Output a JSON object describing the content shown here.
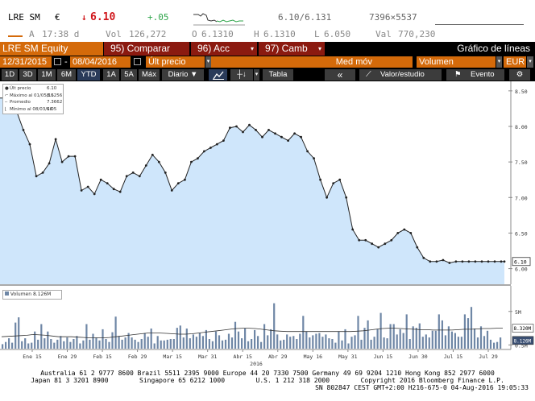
{
  "quote": {
    "ticker": "LRE SM",
    "currency": "€",
    "arrow": "↓",
    "price": "6.10",
    "change": "+.05",
    "bid_ask": "6.10/6.131",
    "size": "7396×5537",
    "prefix": "A",
    "time": "17:38 d",
    "vol_label": "Vol",
    "vol": "126,272",
    "open_label": "O",
    "open": "6.1310",
    "high_label": "H",
    "high": "6.1310",
    "low_label": "L",
    "low": "6.050",
    "val_label": "Val",
    "val": "770,230"
  },
  "menu": {
    "security": "LRE SM Equity",
    "compare": "95) Comparar",
    "actions": "96) Acc",
    "change": "97) Camb",
    "title": "Gráfico de líneas"
  },
  "params": {
    "date_from": "12/31/2015",
    "date_to": "08/04/2016",
    "field": "Últ precio",
    "moving_avg": "Med móv",
    "volume": "Volumen",
    "currency": "EUR"
  },
  "toolbar": {
    "ranges": [
      "1D",
      "3D",
      "1M",
      "6M",
      "YTD",
      "1A",
      "5A",
      "Máx"
    ],
    "active_range": "YTD",
    "period": "Diario ▼",
    "table": "Tabla",
    "value_study": "Valor/estudio",
    "event": "Evento"
  },
  "legend": {
    "rows": [
      {
        "label": "Últ precio",
        "value": "6.10"
      },
      {
        "label": "Máximo al 01/05/16",
        "value": "8.5256"
      },
      {
        "label": "Promedio",
        "value": "7.3662"
      },
      {
        "label": "Mínimo al 08/03/16",
        "value": "6.05"
      }
    ]
  },
  "volume_legend": {
    "label": "Volumen",
    "value": "8.126M"
  },
  "footer": {
    "line1": "Australia 61 2 9777 8600 Brazil 5511 2395 9000 Europe 44 20 7330 7500 Germany 49 69 9204 1210 Hong Kong 852 2977 6000",
    "line2": "Japan 81 3 3201 8900        Singapore 65 6212 1000        U.S. 1 212 318 2000        Copyright 2016 Bloomberg Finance L.P.",
    "line3": "SN 802847 CEST GMT+2:00 H216-675-0 04-Aug-2016 19:05:33"
  },
  "colors": {
    "orange": "#d46a0a",
    "line": "#222222",
    "area": "#cfe6fb",
    "volume_bar": "#6f87a6",
    "green": "#2fa54a",
    "red": "#d0161b"
  },
  "chart_data": [
    {
      "type": "area",
      "title": "",
      "series": [
        {
          "name": "Últ precio",
          "x": [
            0,
            2,
            4,
            6,
            8,
            10,
            12,
            14,
            16,
            18,
            20,
            22,
            24,
            26,
            28,
            30,
            32,
            34,
            36,
            38,
            40,
            42,
            44,
            46,
            48,
            50,
            52,
            54,
            56,
            58,
            60,
            62,
            64,
            66,
            68,
            70,
            72,
            74,
            76,
            78,
            80,
            82,
            84,
            86,
            88,
            90,
            92,
            94,
            96,
            98,
            100,
            102,
            104,
            106,
            108,
            110,
            112,
            114,
            116,
            118,
            120,
            122,
            124,
            126,
            128,
            130,
            132,
            134,
            136,
            138,
            140,
            142,
            144,
            146,
            148,
            150,
            152,
            153
          ],
          "values": [
            8.4,
            8.2,
            7.95,
            7.75,
            7.3,
            7.35,
            7.48,
            7.82,
            7.5,
            7.58,
            7.58,
            7.1,
            7.15,
            7.05,
            7.25,
            7.2,
            7.12,
            7.08,
            7.3,
            7.35,
            7.3,
            7.45,
            7.6,
            7.5,
            7.35,
            7.1,
            7.2,
            7.25,
            7.5,
            7.55,
            7.65,
            7.7,
            7.75,
            7.8,
            7.98,
            8.0,
            7.92,
            8.02,
            7.95,
            7.85,
            7.95,
            7.9,
            7.85,
            7.8,
            7.9,
            7.85,
            7.65,
            7.55,
            7.25,
            7.0,
            7.2,
            7.25,
            7.0,
            6.55,
            6.4,
            6.4,
            6.35,
            6.3,
            6.35,
            6.4,
            6.5,
            6.55,
            6.5,
            6.3,
            6.15,
            6.1,
            6.1,
            6.12,
            6.08,
            6.1,
            6.1,
            6.1,
            6.1,
            6.1,
            6.1,
            6.1,
            6.1,
            6.1
          ]
        }
      ],
      "ylim": [
        5.95,
        8.6
      ],
      "yticks": [
        6.0,
        6.5,
        7.0,
        7.5,
        8.0,
        8.5
      ],
      "last_label": "6.10"
    },
    {
      "type": "bar",
      "title": "",
      "series": [
        {
          "name": "Volumen",
          "values": [
            0.6,
            0.9,
            1.4,
            0.8,
            3.5,
            4.2,
            1.0,
            1.4,
            0.7,
            0.8,
            2.3,
            1.2,
            3.3,
            1.4,
            2.3,
            1.3,
            0.8,
            1.2,
            1.7,
            1.0,
            1.5,
            0.9,
            1.3,
            1.7,
            0.7,
            1.1,
            3.3,
            1.2,
            2.0,
            1.5,
            1.1,
            2.6,
            1.3,
            0.9,
            2.2,
            4.3,
            1.7,
            1.2,
            1.5,
            2.1,
            1.5,
            1.2,
            0.9,
            1.3,
            2.1,
            1.6,
            2.7,
            0.7,
            1.7,
            1.1,
            1.1,
            1.2,
            1.3,
            1.3,
            2.8,
            3.1,
            1.5,
            2.7,
            1.4,
            1.9,
            1.6,
            2.1,
            1.7,
            2.5,
            1.3,
            1.0,
            2.3,
            1.8,
            1.1,
            1.2,
            2.0,
            1.5,
            3.6,
            2.3,
            1.4,
            2.7,
            1.0,
            1.3,
            2.5,
            1.7,
            0.9,
            3.3,
            1.8,
            2.6,
            6.1,
            1.9,
            1.1,
            1.2,
            1.9,
            1.6,
            1.7,
            1.3,
            2.0,
            4.4,
            2.3,
            1.5,
            1.8,
            2.0,
            2.1,
            1.6,
            1.9,
            1.4,
            1.3,
            0.8,
            2.3,
            1.1,
            2.6,
            0.7,
            1.6,
            1.8,
            4.4,
            1.2,
            2.8,
            3.8,
            1.2,
            1.6,
            2.6,
            4.8,
            1.5,
            1.4,
            3.3,
            3.3,
            1.9,
            2.6,
            2.1,
            4.6,
            1.3,
            3.0,
            2.8,
            3.4,
            1.6,
            1.9,
            1.5,
            2.4,
            2.4,
            4.6,
            3.8,
            1.8,
            3.0,
            2.3,
            2.1,
            1.6,
            1.6,
            4.6,
            4.1,
            5.6,
            2.7,
            1.5,
            3.0,
            1.7,
            2.4,
            1.2,
            0.8,
            0.9,
            1.5
          ]
        },
        {
          "name": "Media volumen",
          "values": [
            1.6,
            1.65,
            1.7,
            1.75,
            1.8,
            1.9,
            1.85,
            1.8,
            1.7,
            1.6,
            1.6,
            1.6,
            1.55,
            1.5,
            1.45,
            1.45,
            1.45,
            1.5,
            1.6,
            1.7,
            1.8,
            1.9,
            2.0,
            2.1,
            2.1,
            2.1,
            2.05,
            2.0,
            1.95,
            1.95,
            2.0,
            2.1,
            2.2,
            2.3,
            2.4,
            2.5,
            2.6,
            2.7,
            2.75,
            2.75,
            2.7,
            2.6,
            2.5,
            2.4,
            2.35,
            2.3,
            2.3,
            2.3,
            2.3,
            2.3,
            2.3,
            2.3,
            2.3,
            2.3,
            2.3,
            2.3,
            2.35,
            2.4,
            2.5,
            2.6,
            2.7,
            2.75,
            2.75,
            2.7,
            2.65,
            2.6,
            2.55,
            2.55,
            2.5,
            2.5,
            2.5,
            2.5,
            2.55,
            2.6,
            2.6,
            2.65,
            2.7,
            2.7,
            2.75,
            2.75
          ]
        }
      ],
      "ylim": [
        0,
        8
      ],
      "yticks": [
        0.5,
        5.0
      ],
      "ytick_labels": [
        "0.5M",
        "5M"
      ],
      "labels_right": [
        "8.320M",
        "8.126M"
      ]
    }
  ],
  "axis": {
    "x_ticks": [
      "Ene 15",
      "Ene 29",
      "Feb 15",
      "Feb 29",
      "Mar 15",
      "Mar 31",
      "Abr 15",
      "Abr 29",
      "May 16",
      "May 31",
      "Jun 15",
      "Jun 30",
      "Jul 15",
      "Jul 29"
    ],
    "year": "2016"
  }
}
